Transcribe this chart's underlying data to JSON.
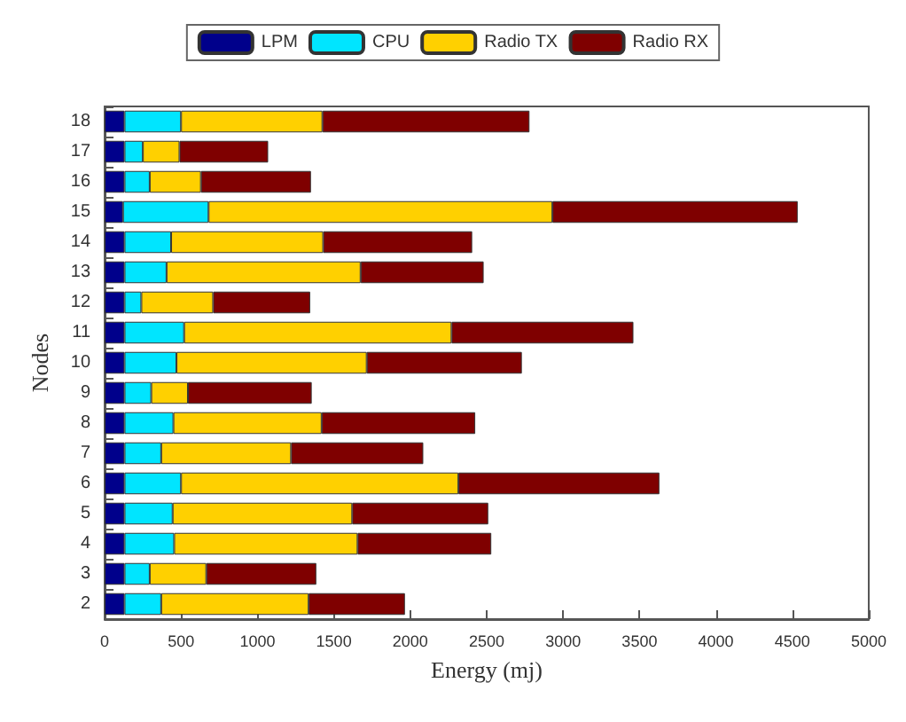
{
  "chart_data": {
    "type": "bar",
    "orientation": "horizontal",
    "stacked": true,
    "xlabel": "Energy (mj)",
    "ylabel": "Nodes",
    "categories": [
      "18",
      "17",
      "16",
      "15",
      "14",
      "13",
      "12",
      "11",
      "10",
      "9",
      "8",
      "7",
      "6",
      "5",
      "4",
      "3",
      "2"
    ],
    "series": [
      {
        "name": "LPM",
        "color": "#00008b",
        "values": [
          130,
          130,
          130,
          120,
          130,
          130,
          130,
          130,
          130,
          130,
          130,
          130,
          130,
          130,
          130,
          130,
          130
        ]
      },
      {
        "name": "CPU",
        "color": "#00e5ff",
        "values": [
          370,
          120,
          165,
          560,
          305,
          275,
          110,
          390,
          340,
          175,
          320,
          240,
          370,
          315,
          325,
          165,
          240
        ]
      },
      {
        "name": "Radio TX",
        "color": "#ffd000",
        "values": [
          925,
          240,
          335,
          2250,
          995,
          1270,
          470,
          1750,
          1245,
          240,
          970,
          850,
          1815,
          1175,
          1200,
          370,
          965
        ]
      },
      {
        "name": "Radio RX",
        "color": "#7f0000",
        "values": [
          1355,
          580,
          720,
          1605,
          975,
          805,
          635,
          1190,
          1015,
          810,
          1005,
          865,
          1315,
          890,
          875,
          720,
          630
        ]
      }
    ],
    "xlim": [
      0,
      5000
    ],
    "xticks": [
      0,
      500,
      1000,
      1500,
      2000,
      2500,
      3000,
      3500,
      4000,
      4500,
      5000
    ],
    "grid": false,
    "legend": "top"
  }
}
